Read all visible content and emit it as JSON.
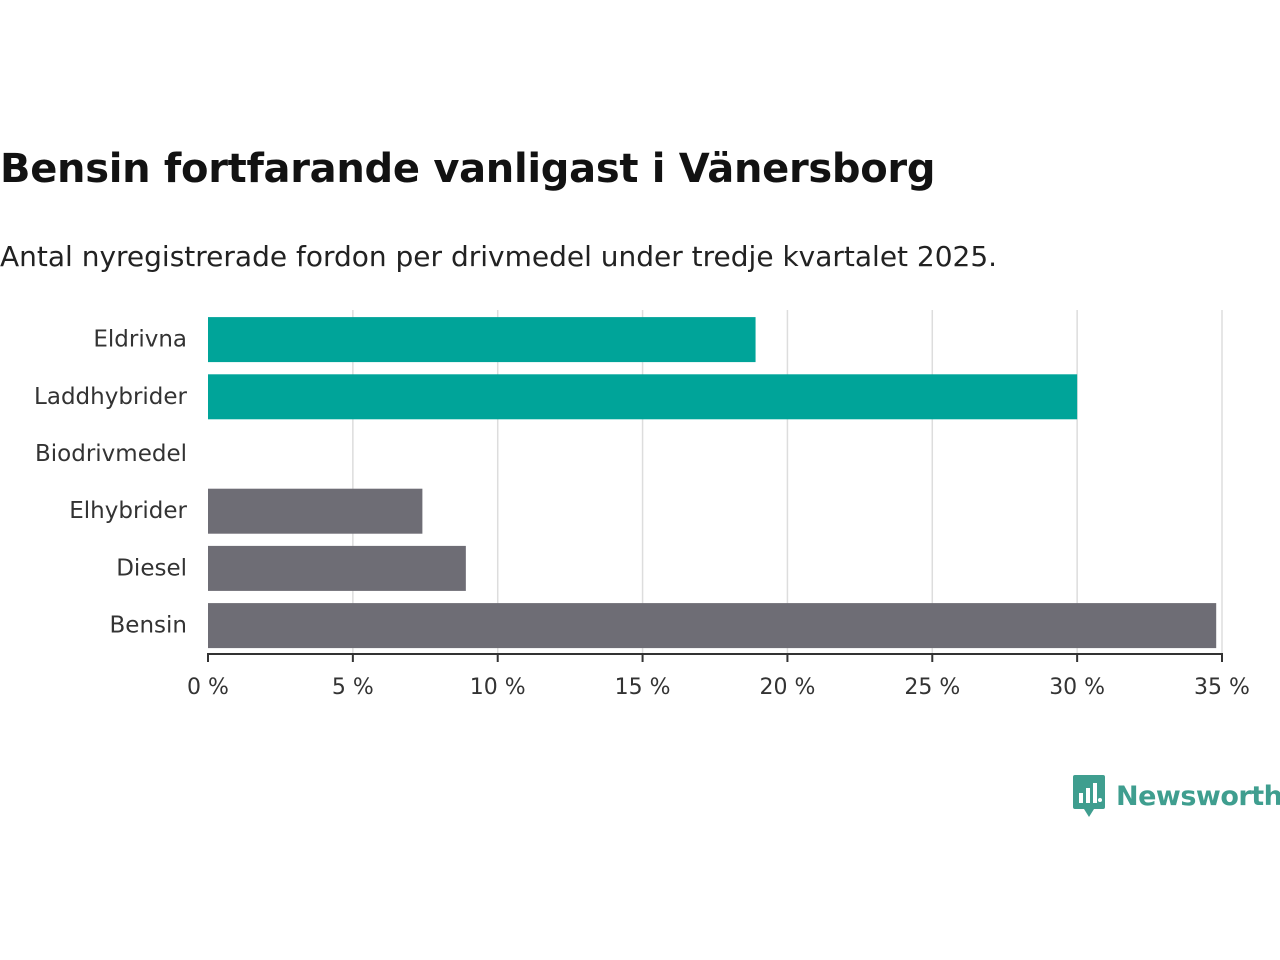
{
  "chart_data": {
    "type": "bar",
    "orientation": "horizontal",
    "title": "Bensin fortfarande vanligast i Vänersborg",
    "subtitle": "Antal nyregistrerade fordon per drivmedel under tredje kvartalet 2025.",
    "categories": [
      "Eldrivna",
      "Laddhybrider",
      "Biodrivmedel",
      "Elhybrider",
      "Diesel",
      "Bensin"
    ],
    "values": [
      18.9,
      30.0,
      0,
      7.4,
      8.9,
      34.8
    ],
    "bar_colors": [
      "#00a499",
      "#00a499",
      "#00a499",
      "#6e6d75",
      "#6e6d75",
      "#6e6d75"
    ],
    "xlim": [
      0,
      35
    ],
    "xticks": [
      0,
      5,
      10,
      15,
      20,
      25,
      30,
      35
    ],
    "xtick_labels": [
      "0 %",
      "5 %",
      "10 %",
      "15 %",
      "20 %",
      "25 %",
      "30 %",
      "35 %"
    ],
    "xlabel": "",
    "ylabel": "",
    "grid": "vertical"
  },
  "branding": {
    "name": "Newsworthy",
    "logo_icon": "newsworthy-logo-icon",
    "color": "#3f9e8f"
  },
  "colors": {
    "electrified": "#00a499",
    "fossil": "#6e6d75",
    "gridline": "#dddddd",
    "axis": "#333333"
  }
}
